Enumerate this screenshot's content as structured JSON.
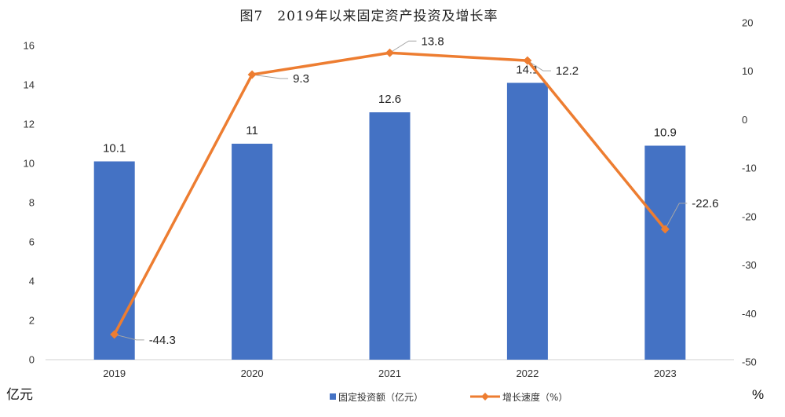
{
  "chart_data": {
    "type": "bar",
    "title": "图7　2019年以来固定资产投资及增长率",
    "categories": [
      "2019",
      "2020",
      "2021",
      "2022",
      "2023"
    ],
    "series": [
      {
        "name": "固定投资额（亿元）",
        "type": "bar",
        "axis": "left",
        "values": [
          10.1,
          11,
          12.6,
          14.1,
          10.9
        ],
        "labels": [
          "10.1",
          "11",
          "12.6",
          "14.1",
          "10.9"
        ],
        "color": "#4472C4"
      },
      {
        "name": "增长速度（%）",
        "type": "line",
        "axis": "right",
        "values": [
          -44.3,
          9.3,
          13.8,
          12.2,
          -22.6
        ],
        "labels": [
          "-44.3",
          "9.3",
          "13.8",
          "12.2",
          "-22.6"
        ],
        "color": "#ED7D31",
        "marker": "diamond"
      }
    ],
    "left_axis": {
      "label": "亿元",
      "ylim": [
        0,
        16
      ],
      "ticks": [
        "0",
        "2",
        "4",
        "6",
        "8",
        "10",
        "12",
        "14",
        "16"
      ]
    },
    "right_axis": {
      "label": "%",
      "ylim": [
        -50,
        20
      ],
      "ticks": [
        "-50",
        "-40",
        "-30",
        "-20",
        "-10",
        "0",
        "10",
        "20"
      ]
    },
    "grid": false,
    "legend_position": "bottom"
  }
}
